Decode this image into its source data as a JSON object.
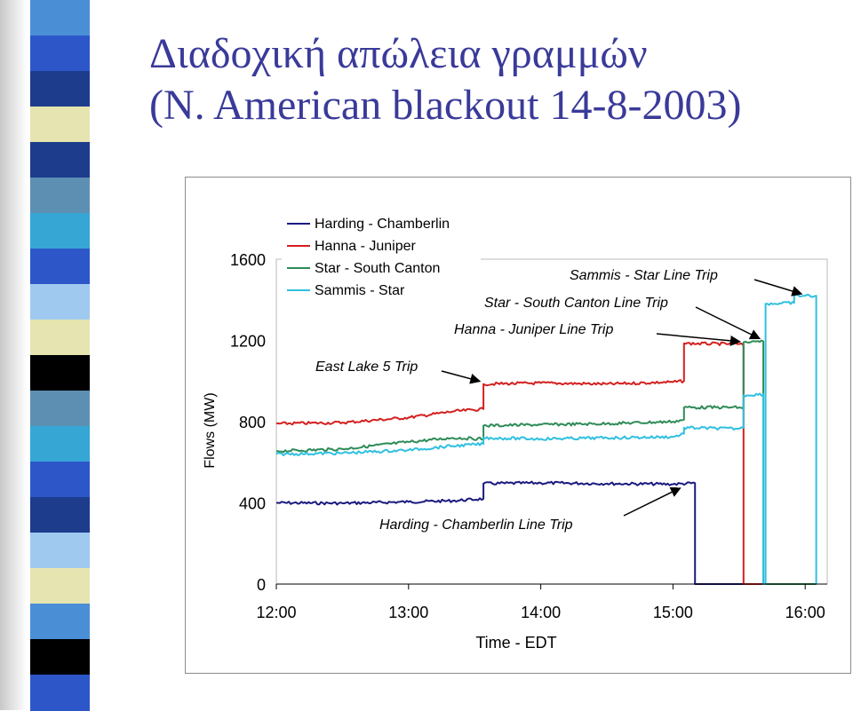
{
  "slide": {
    "title_line1": "Διαδοχική απώλεια γραμμών",
    "title_line2": "(N. American blackout 14-8-2003)"
  },
  "colors": {
    "title": "#3a3a9a",
    "strip_bands": [
      "#4a8fd6",
      "#2d57c9",
      "#1d3c8c",
      "#e6e4b0",
      "#1d3c8c",
      "#5d8fb2",
      "#36a6d4",
      "#2d57c9",
      "#9fc9ef",
      "#e6e4b0",
      "#000000",
      "#5d8fb2",
      "#36a6d4",
      "#2d57c9",
      "#1d3c8c",
      "#9fc9ef",
      "#e6e4b0",
      "#4a8fd6",
      "#000000",
      "#2d57c9"
    ]
  },
  "chart_data": {
    "type": "line",
    "xlabel": "Time - EDT",
    "ylabel": "Flows (MW)",
    "x_ticks": [
      "12:00",
      "13:00",
      "14:00",
      "15:00",
      "16:00"
    ],
    "y_ticks": [
      0,
      400,
      800,
      1200,
      1600
    ],
    "xlim": [
      "12:00",
      "16:10"
    ],
    "ylim": [
      0,
      1600
    ],
    "grid": false,
    "legend_position": "top-left",
    "series": [
      {
        "name": "Harding - Chamberlin",
        "color": "#1a1a80",
        "points": [
          [
            "12:00",
            400
          ],
          [
            "12:30",
            398
          ],
          [
            "13:00",
            405
          ],
          [
            "13:20",
            410
          ],
          [
            "13:34",
            420
          ],
          [
            "13:34",
            495
          ],
          [
            "14:00",
            498
          ],
          [
            "14:30",
            495
          ],
          [
            "15:00",
            492
          ],
          [
            "15:10",
            497
          ],
          [
            "15:10",
            0
          ],
          [
            "16:05",
            0
          ]
        ]
      },
      {
        "name": "Hanna - Juniper",
        "color": "#d42020",
        "points": [
          [
            "12:00",
            790
          ],
          [
            "12:30",
            795
          ],
          [
            "13:00",
            820
          ],
          [
            "13:20",
            850
          ],
          [
            "13:34",
            862
          ],
          [
            "13:34",
            985
          ],
          [
            "14:00",
            990
          ],
          [
            "14:30",
            985
          ],
          [
            "15:00",
            995
          ],
          [
            "15:05",
            1000
          ],
          [
            "15:05",
            1185
          ],
          [
            "15:30",
            1182
          ],
          [
            "15:32",
            1175
          ],
          [
            "15:32",
            0
          ],
          [
            "16:05",
            0
          ]
        ]
      },
      {
        "name": "Star - South Canton",
        "color": "#2e8b57",
        "points": [
          [
            "12:00",
            655
          ],
          [
            "12:30",
            665
          ],
          [
            "13:00",
            700
          ],
          [
            "13:20",
            720
          ],
          [
            "13:34",
            715
          ],
          [
            "13:34",
            780
          ],
          [
            "14:00",
            785
          ],
          [
            "14:30",
            790
          ],
          [
            "15:00",
            800
          ],
          [
            "15:05",
            810
          ],
          [
            "15:05",
            870
          ],
          [
            "15:30",
            870
          ],
          [
            "15:32",
            865
          ],
          [
            "15:32",
            1190
          ],
          [
            "15:41",
            1195
          ],
          [
            "15:41",
            0
          ],
          [
            "16:05",
            0
          ]
        ]
      },
      {
        "name": "Sammis - Star",
        "color": "#30c0e0",
        "points": [
          [
            "12:00",
            640
          ],
          [
            "12:30",
            645
          ],
          [
            "13:00",
            660
          ],
          [
            "13:20",
            680
          ],
          [
            "13:34",
            690
          ],
          [
            "13:34",
            720
          ],
          [
            "14:00",
            715
          ],
          [
            "14:30",
            720
          ],
          [
            "15:00",
            725
          ],
          [
            "15:05",
            740
          ],
          [
            "15:05",
            770
          ],
          [
            "15:30",
            765
          ],
          [
            "15:32",
            770
          ],
          [
            "15:32",
            930
          ],
          [
            "15:41",
            935
          ],
          [
            "15:41",
            0
          ],
          [
            "15:42",
            0
          ],
          [
            "15:42",
            1380
          ],
          [
            "15:55",
            1385
          ],
          [
            "15:55",
            1420
          ],
          [
            "16:05",
            1420
          ],
          [
            "16:05",
            0
          ]
        ]
      }
    ],
    "annotations": [
      {
        "text": "East Lake 5 Trip",
        "arrow_to": [
          "13:34",
          990
        ]
      },
      {
        "text": "Hanna - Juniper Line Trip",
        "arrow_to": [
          "15:32",
          1185
        ]
      },
      {
        "text": "Star - South Canton Line Trip",
        "arrow_to": [
          "15:41",
          1200
        ]
      },
      {
        "text": "Sammis - Star Line Trip",
        "arrow_to": [
          "16:00",
          1420
        ]
      },
      {
        "text": "Harding - Chamberlin Line Trip",
        "arrow_to": [
          "15:05",
          500
        ]
      }
    ]
  }
}
